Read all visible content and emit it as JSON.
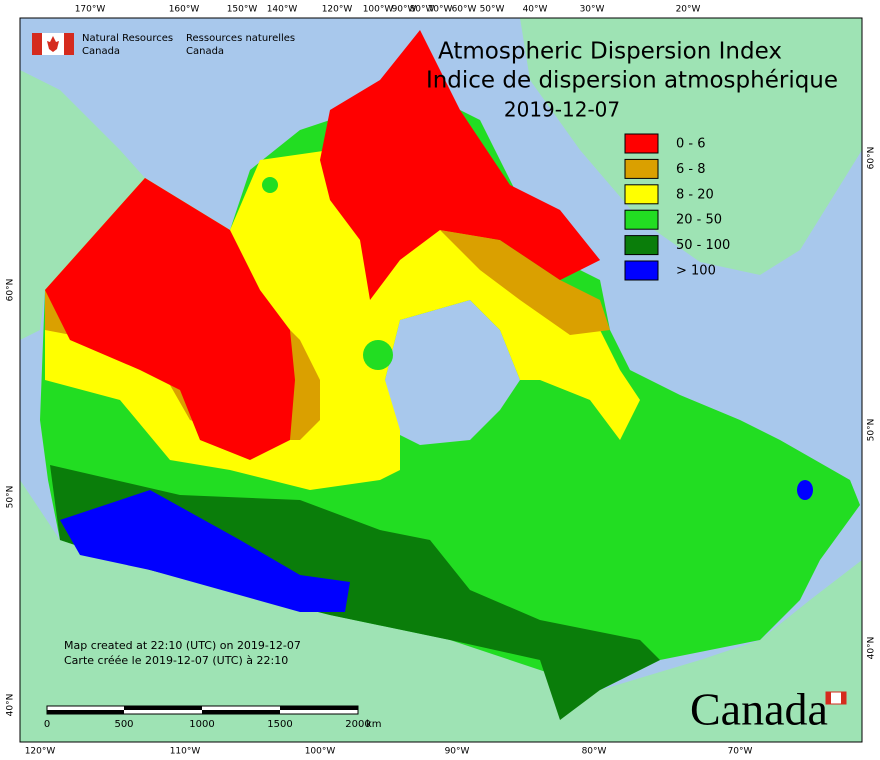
{
  "agency": {
    "en": {
      "line1": "Natural Resources",
      "line2": "Canada"
    },
    "fr": {
      "line1": "Ressources naturelles",
      "line2": "Canada"
    }
  },
  "title": {
    "en": "Atmospheric Dispersion Index",
    "fr": "Indice de dispersion atmosphérique",
    "date": "2019-12-07"
  },
  "legend": {
    "items": [
      {
        "label": "0 - 6",
        "color": "#ff0000"
      },
      {
        "label": "6 - 8",
        "color": "#daa000"
      },
      {
        "label": "8 - 20",
        "color": "#ffff00"
      },
      {
        "label": "20 - 50",
        "color": "#22dd22"
      },
      {
        "label": "50 - 100",
        "color": "#0a7d0a"
      },
      {
        "label": "> 100",
        "color": "#0000ff"
      }
    ]
  },
  "graticule": {
    "top": [
      "170°W",
      "160°W",
      "150°W",
      "140°W",
      "120°W",
      "100°W",
      "90°W",
      "80°W",
      "70°W",
      "60°W",
      "50°W",
      "40°W",
      "30°W",
      "20°W"
    ],
    "bottom": [
      "120°W",
      "110°W",
      "100°W",
      "90°W",
      "80°W",
      "70°W"
    ],
    "left": [
      "60°N",
      "50°N",
      "40°N"
    ],
    "right": [
      "60°N",
      "50°N",
      "40°N"
    ]
  },
  "credits": [
    "Map created at 22:10 (UTC) on 2019-12-07",
    "Carte créée le 2019-12-07 (UTC) à 22:10"
  ],
  "scale_bar": {
    "ticks": [
      "0",
      "500",
      "1000",
      "1500",
      "2000"
    ],
    "unit": "km"
  },
  "wordmark": "Canada"
}
